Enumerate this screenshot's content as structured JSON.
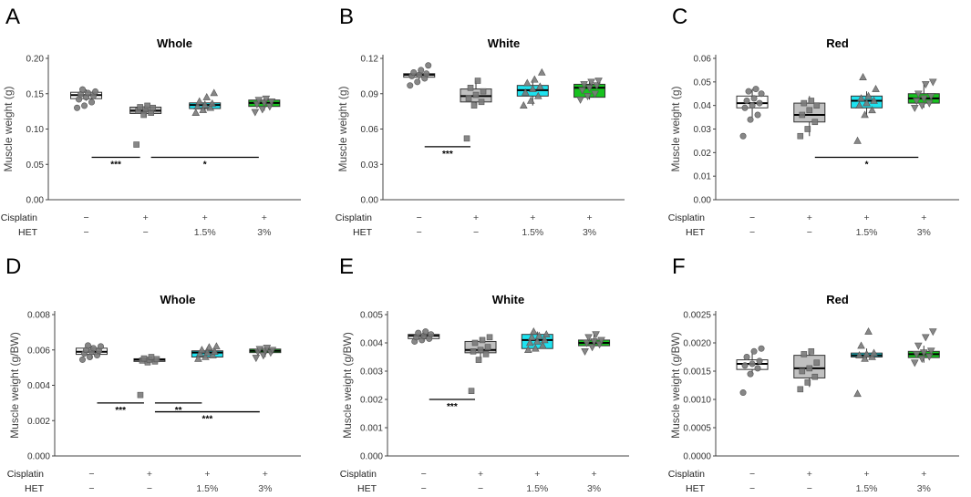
{
  "figure": {
    "panel_letters": [
      "A",
      "B",
      "C",
      "D",
      "E",
      "F"
    ],
    "row_labels": {
      "cisplatin": "Cisplatin",
      "het": "HET"
    },
    "cisplatin_marks": [
      "−",
      "+",
      "+",
      "+"
    ],
    "het_marks": [
      "−",
      "−",
      "1.5%",
      "3%"
    ],
    "group_colors": [
      "#ffffff",
      "#c0c0c0",
      "#1ee3f0",
      "#17c21f"
    ],
    "group_markers": [
      "circle",
      "square",
      "triangle",
      "triangle-down"
    ]
  },
  "chart_data": [
    {
      "type": "box",
      "panel": "A",
      "title": "Whole",
      "ylabel": "Muscle weight (g)",
      "ylim": [
        0,
        0.2
      ],
      "yticks": [
        "0.00",
        "0.05",
        "0.10",
        "0.15",
        "0.20"
      ],
      "groups": [
        {
          "box": [
            0.143,
            0.148,
            0.152
          ],
          "whisker": [
            0.14,
            0.156
          ],
          "points": [
            0.13,
            0.133,
            0.138,
            0.142,
            0.145,
            0.147,
            0.149,
            0.151,
            0.153,
            0.156
          ]
        },
        {
          "box": [
            0.122,
            0.126,
            0.131
          ],
          "whisker": [
            0.118,
            0.134
          ],
          "points": [
            0.078,
            0.12,
            0.123,
            0.126,
            0.128,
            0.13,
            0.131,
            0.133
          ]
        },
        {
          "box": [
            0.129,
            0.134,
            0.137
          ],
          "whisker": [
            0.124,
            0.14
          ],
          "points": [
            0.123,
            0.127,
            0.13,
            0.132,
            0.134,
            0.136,
            0.139,
            0.145,
            0.151
          ]
        },
        {
          "box": [
            0.132,
            0.137,
            0.141
          ],
          "whisker": [
            0.126,
            0.143
          ],
          "points": [
            0.124,
            0.128,
            0.132,
            0.135,
            0.137,
            0.139,
            0.141,
            0.143
          ]
        }
      ],
      "significance": [
        {
          "from": 0,
          "to": 1,
          "y": 0.06,
          "label": "***"
        },
        {
          "from": 1,
          "to": 3,
          "y": 0.06,
          "label": "*"
        }
      ]
    },
    {
      "type": "box",
      "panel": "B",
      "title": "White",
      "ylabel": "Muscle weight (g)",
      "ylim": [
        0,
        0.12
      ],
      "yticks": [
        "0.00",
        "0.03",
        "0.06",
        "0.09",
        "0.12"
      ],
      "groups": [
        {
          "box": [
            0.104,
            0.106,
            0.107
          ],
          "whisker": [
            0.102,
            0.11
          ],
          "points": [
            0.097,
            0.1,
            0.103,
            0.105,
            0.106,
            0.107,
            0.108,
            0.11,
            0.114
          ]
        },
        {
          "box": [
            0.083,
            0.088,
            0.094
          ],
          "whisker": [
            0.08,
            0.101
          ],
          "points": [
            0.052,
            0.08,
            0.083,
            0.086,
            0.089,
            0.092,
            0.095,
            0.101
          ]
        },
        {
          "box": [
            0.088,
            0.093,
            0.097
          ],
          "whisker": [
            0.08,
            0.102
          ],
          "points": [
            0.08,
            0.084,
            0.088,
            0.091,
            0.094,
            0.096,
            0.099,
            0.102,
            0.108
          ]
        },
        {
          "box": [
            0.087,
            0.095,
            0.098
          ],
          "whisker": [
            0.085,
            0.101
          ],
          "points": [
            0.085,
            0.088,
            0.09,
            0.093,
            0.095,
            0.097,
            0.098,
            0.1,
            0.101
          ]
        }
      ],
      "significance": [
        {
          "from": 0,
          "to": 1,
          "y": 0.045,
          "label": "***"
        }
      ]
    },
    {
      "type": "box",
      "panel": "C",
      "title": "Red",
      "ylabel": "Muscle weight (g)",
      "ylim": [
        0,
        0.06
      ],
      "yticks": [
        "0.00",
        "0.01",
        "0.02",
        "0.03",
        "0.04",
        "0.05",
        "0.06"
      ],
      "groups": [
        {
          "box": [
            0.039,
            0.041,
            0.044
          ],
          "whisker": [
            0.035,
            0.047
          ],
          "points": [
            0.027,
            0.034,
            0.036,
            0.039,
            0.04,
            0.041,
            0.042,
            0.043,
            0.045,
            0.046,
            0.047
          ]
        },
        {
          "box": [
            0.033,
            0.036,
            0.041
          ],
          "whisker": [
            0.027,
            0.044
          ],
          "points": [
            0.027,
            0.03,
            0.033,
            0.036,
            0.038,
            0.04,
            0.041,
            0.042
          ]
        },
        {
          "box": [
            0.039,
            0.042,
            0.044
          ],
          "whisker": [
            0.035,
            0.046
          ],
          "points": [
            0.025,
            0.036,
            0.038,
            0.04,
            0.041,
            0.042,
            0.043,
            0.044,
            0.047,
            0.052
          ]
        },
        {
          "box": [
            0.041,
            0.043,
            0.045
          ],
          "whisker": [
            0.039,
            0.049
          ],
          "points": [
            0.039,
            0.04,
            0.041,
            0.042,
            0.043,
            0.044,
            0.045,
            0.049,
            0.05
          ]
        }
      ],
      "significance": [
        {
          "from": 1,
          "to": 3,
          "y": 0.018,
          "label": "*"
        }
      ]
    },
    {
      "type": "box",
      "panel": "D",
      "title": "Whole",
      "ylabel": "Muscle weight (g/BW)",
      "ylim": [
        0,
        0.008
      ],
      "yticks": [
        "0.000",
        "0.002",
        "0.004",
        "0.006",
        "0.008"
      ],
      "groups": [
        {
          "box": [
            0.00575,
            0.0059,
            0.0061
          ],
          "whisker": [
            0.0055,
            0.00625
          ],
          "points": [
            0.00545,
            0.0056,
            0.0057,
            0.0058,
            0.0059,
            0.00595,
            0.006,
            0.0061,
            0.0062,
            0.00625
          ]
        },
        {
          "box": [
            0.00535,
            0.00545,
            0.0055
          ],
          "whisker": [
            0.0053,
            0.0056
          ],
          "points": [
            0.00345,
            0.0053,
            0.00535,
            0.0054,
            0.00545,
            0.00548,
            0.00552,
            0.0056
          ]
        },
        {
          "box": [
            0.0056,
            0.00585,
            0.00595
          ],
          "whisker": [
            0.0055,
            0.00615
          ],
          "points": [
            0.0055,
            0.0056,
            0.0057,
            0.0058,
            0.00585,
            0.0059,
            0.006,
            0.00615,
            0.0062
          ]
        },
        {
          "box": [
            0.00585,
            0.00595,
            0.00605
          ],
          "whisker": [
            0.0056,
            0.00615
          ],
          "points": [
            0.00555,
            0.0057,
            0.00585,
            0.0059,
            0.00595,
            0.006,
            0.00605,
            0.00612
          ]
        }
      ],
      "significance": [
        {
          "from": 0,
          "to": 1,
          "y": 0.003,
          "label": "***"
        },
        {
          "from": 1,
          "to": 2,
          "y": 0.003,
          "label": "**"
        },
        {
          "from": 1,
          "to": 3,
          "y": 0.0025,
          "label": "***"
        }
      ]
    },
    {
      "type": "box",
      "panel": "E",
      "title": "White",
      "ylabel": "Muscle weight (g/BW)",
      "ylim": [
        0,
        0.005
      ],
      "yticks": [
        "0.000",
        "0.001",
        "0.002",
        "0.003",
        "0.004",
        "0.005"
      ],
      "groups": [
        {
          "box": [
            0.00415,
            0.00425,
            0.0043
          ],
          "whisker": [
            0.00405,
            0.0044
          ],
          "points": [
            0.00405,
            0.0041,
            0.00415,
            0.0042,
            0.00425,
            0.0043,
            0.00435,
            0.0044
          ]
        },
        {
          "box": [
            0.00365,
            0.00375,
            0.00405
          ],
          "whisker": [
            0.0034,
            0.0042
          ],
          "points": [
            0.0023,
            0.0034,
            0.0036,
            0.0037,
            0.00375,
            0.00385,
            0.004,
            0.0041,
            0.0042
          ]
        },
        {
          "box": [
            0.0038,
            0.0041,
            0.0043
          ],
          "whisker": [
            0.00375,
            0.0044
          ],
          "points": [
            0.00375,
            0.0038,
            0.0039,
            0.004,
            0.00405,
            0.0041,
            0.0042,
            0.00425,
            0.0043,
            0.0044
          ]
        },
        {
          "box": [
            0.0039,
            0.004,
            0.0041
          ],
          "whisker": [
            0.00385,
            0.0043
          ],
          "points": [
            0.0037,
            0.00385,
            0.00395,
            0.004,
            0.00405,
            0.0041,
            0.0042,
            0.0043
          ]
        }
      ],
      "significance": [
        {
          "from": 0,
          "to": 1,
          "y": 0.002,
          "label": "***"
        }
      ]
    },
    {
      "type": "box",
      "panel": "F",
      "title": "Red",
      "ylabel": "Muscle weight (g/BW)",
      "ylim": [
        0,
        0.0025
      ],
      "yticks": [
        "0.0000",
        "0.0005",
        "0.0010",
        "0.0015",
        "0.0020",
        "0.0025"
      ],
      "groups": [
        {
          "box": [
            0.00153,
            0.00163,
            0.0017
          ],
          "whisker": [
            0.00145,
            0.00185
          ],
          "points": [
            0.00112,
            0.00145,
            0.00155,
            0.0016,
            0.00163,
            0.00168,
            0.00175,
            0.00185,
            0.0019
          ]
        },
        {
          "box": [
            0.00138,
            0.00155,
            0.00178
          ],
          "whisker": [
            0.00122,
            0.00185
          ],
          "points": [
            0.00118,
            0.0013,
            0.0014,
            0.0015,
            0.00155,
            0.00165,
            0.0018,
            0.00185
          ]
        },
        {
          "box": [
            0.00175,
            0.00178,
            0.00182
          ],
          "whisker": [
            0.0017,
            0.0019
          ],
          "points": [
            0.0011,
            0.00172,
            0.00175,
            0.00178,
            0.0018,
            0.00182,
            0.00195,
            0.0022
          ]
        },
        {
          "box": [
            0.00174,
            0.0018,
            0.00185
          ],
          "whisker": [
            0.00165,
            0.00195
          ],
          "points": [
            0.00165,
            0.00172,
            0.00176,
            0.0018,
            0.00183,
            0.00186,
            0.00195,
            0.0021,
            0.0022
          ]
        }
      ],
      "significance": []
    }
  ]
}
